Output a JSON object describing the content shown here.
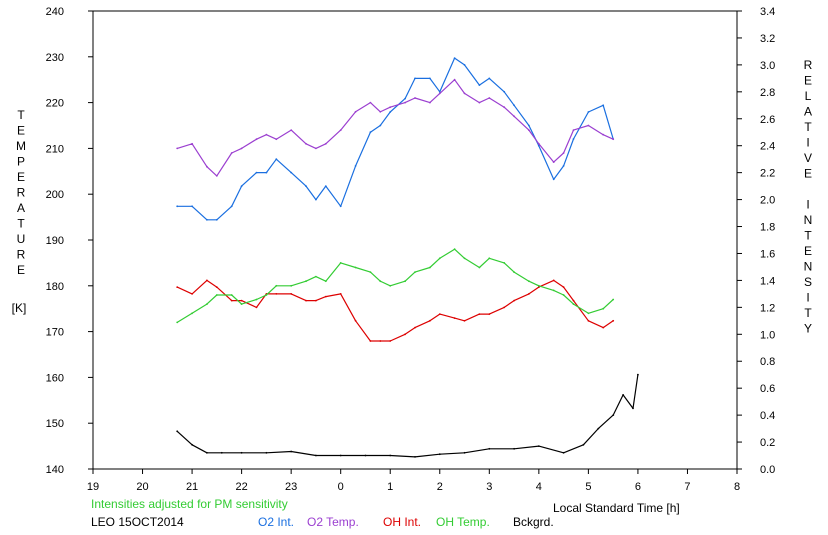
{
  "chart_data": {
    "type": "line",
    "xlabel": "Local Standard Time [h]",
    "x_ticks": [
      "19",
      "20",
      "21",
      "22",
      "23",
      "0",
      "1",
      "2",
      "3",
      "4",
      "5",
      "6",
      "7",
      "8"
    ],
    "ylabel_left": "TEMPERATURE",
    "ylabel_left_unit": "[K]",
    "ylim_left": [
      140,
      240
    ],
    "y_ticks_left": [
      "140",
      "150",
      "160",
      "170",
      "180",
      "190",
      "200",
      "210",
      "220",
      "230",
      "240"
    ],
    "ylabel_right": "RELATIVE INTENSITY",
    "ylim_right": [
      0.0,
      3.4
    ],
    "y_ticks_right": [
      "0.0",
      "0.2",
      "0.4",
      "0.6",
      "0.8",
      "1.0",
      "1.2",
      "1.4",
      "1.6",
      "1.8",
      "2.0",
      "2.2",
      "2.4",
      "2.6",
      "2.8",
      "3.0",
      "3.2",
      "3.4"
    ],
    "note": "Intensities adjusted for PM sensitivity",
    "station_label": "LEO 15OCT2014",
    "grid": false,
    "series": [
      {
        "name": "O2 Int.",
        "axis": "right",
        "color": "#1a6fe0",
        "x": [
          20.7,
          21.0,
          21.3,
          21.5,
          21.8,
          22.0,
          22.3,
          22.5,
          22.7,
          23.0,
          23.3,
          23.5,
          23.7,
          24.0,
          24.3,
          24.6,
          24.8,
          25.0,
          25.3,
          25.5,
          25.8,
          26.0,
          26.3,
          26.5,
          26.8,
          27.0,
          27.3,
          27.5,
          27.8,
          28.0,
          28.3,
          28.5,
          28.7,
          29.0,
          29.3,
          29.5
        ],
        "y": [
          1.95,
          1.95,
          1.85,
          1.85,
          1.95,
          2.1,
          2.2,
          2.2,
          2.3,
          2.2,
          2.1,
          2.0,
          2.1,
          1.95,
          2.25,
          2.5,
          2.55,
          2.65,
          2.75,
          2.9,
          2.9,
          2.8,
          3.05,
          3.0,
          2.85,
          2.9,
          2.8,
          2.7,
          2.55,
          2.4,
          2.15,
          2.25,
          2.45,
          2.65,
          2.7,
          2.45
        ]
      },
      {
        "name": "O2 Temp.",
        "axis": "left",
        "color": "#9b3fd0",
        "x": [
          20.7,
          21.0,
          21.3,
          21.5,
          21.8,
          22.0,
          22.3,
          22.5,
          22.7,
          23.0,
          23.3,
          23.5,
          23.7,
          24.0,
          24.3,
          24.6,
          24.8,
          25.0,
          25.3,
          25.5,
          25.8,
          26.0,
          26.3,
          26.5,
          26.8,
          27.0,
          27.3,
          27.5,
          27.8,
          28.0,
          28.3,
          28.5,
          28.7,
          29.0,
          29.3,
          29.5
        ],
        "y": [
          210,
          211,
          206,
          204,
          209,
          210,
          212,
          213,
          212,
          214,
          211,
          210,
          211,
          214,
          218,
          220,
          218,
          219,
          220,
          221,
          220,
          222,
          225,
          222,
          220,
          221,
          219,
          217,
          214,
          211,
          207,
          209,
          214,
          215,
          213,
          212
        ]
      },
      {
        "name": "OH Int.",
        "axis": "right",
        "color": "#dd0000",
        "x": [
          20.7,
          21.0,
          21.3,
          21.5,
          21.8,
          22.0,
          22.3,
          22.5,
          22.7,
          23.0,
          23.3,
          23.5,
          23.7,
          24.0,
          24.3,
          24.6,
          24.8,
          25.0,
          25.3,
          25.5,
          25.8,
          26.0,
          26.3,
          26.5,
          26.8,
          27.0,
          27.3,
          27.5,
          27.8,
          28.0,
          28.3,
          28.5,
          28.7,
          29.0,
          29.3,
          29.5
        ],
        "y": [
          1.35,
          1.3,
          1.4,
          1.35,
          1.25,
          1.25,
          1.2,
          1.3,
          1.3,
          1.3,
          1.25,
          1.25,
          1.28,
          1.3,
          1.1,
          0.95,
          0.95,
          0.95,
          1.0,
          1.05,
          1.1,
          1.15,
          1.12,
          1.1,
          1.15,
          1.15,
          1.2,
          1.25,
          1.3,
          1.35,
          1.4,
          1.35,
          1.25,
          1.1,
          1.05,
          1.1
        ]
      },
      {
        "name": "OH Temp.",
        "axis": "left",
        "color": "#33cc33",
        "x": [
          20.7,
          21.0,
          21.3,
          21.5,
          21.8,
          22.0,
          22.3,
          22.5,
          22.7,
          23.0,
          23.3,
          23.5,
          23.7,
          24.0,
          24.3,
          24.6,
          24.8,
          25.0,
          25.3,
          25.5,
          25.8,
          26.0,
          26.3,
          26.5,
          26.8,
          27.0,
          27.3,
          27.5,
          27.8,
          28.0,
          28.3,
          28.5,
          28.7,
          29.0,
          29.3,
          29.5
        ],
        "y": [
          172,
          174,
          176,
          178,
          178,
          176,
          177,
          178,
          180,
          180,
          181,
          182,
          181,
          185,
          184,
          183,
          181,
          180,
          181,
          183,
          184,
          186,
          188,
          186,
          184,
          186,
          185,
          183,
          181,
          180,
          179,
          178,
          176,
          174,
          175,
          177
        ]
      },
      {
        "name": "Bckgrd.",
        "axis": "right",
        "color": "#000000",
        "x": [
          20.7,
          21.0,
          21.3,
          21.6,
          22.0,
          22.5,
          23.0,
          23.5,
          24.0,
          24.5,
          25.0,
          25.5,
          26.0,
          26.5,
          27.0,
          27.5,
          28.0,
          28.5,
          28.9,
          29.2,
          29.5,
          29.7,
          29.9,
          30.0
        ],
        "y": [
          0.28,
          0.18,
          0.12,
          0.12,
          0.12,
          0.12,
          0.13,
          0.1,
          0.1,
          0.1,
          0.1,
          0.09,
          0.11,
          0.12,
          0.15,
          0.15,
          0.17,
          0.12,
          0.18,
          0.3,
          0.4,
          0.55,
          0.45,
          0.7
        ]
      }
    ]
  }
}
